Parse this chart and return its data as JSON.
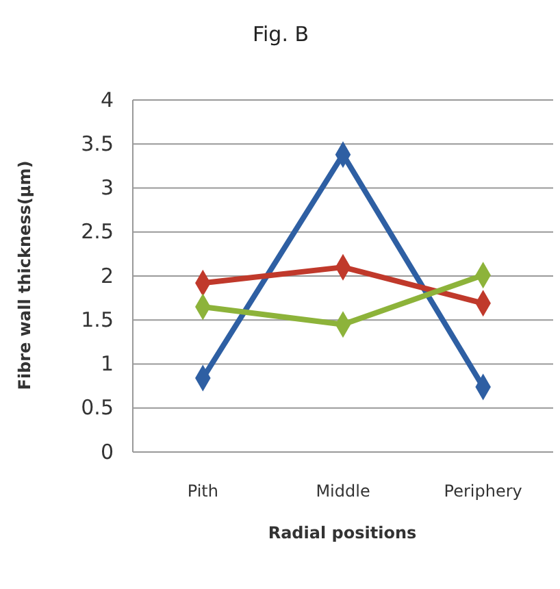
{
  "chart_data": {
    "type": "line",
    "title": "Fig. B",
    "xlabel": "Radial positions",
    "ylabel": "Fibre  wall thickness(µm)",
    "categories": [
      "Pith",
      "Middle",
      "Periphery"
    ],
    "series": [
      {
        "color": "#2e5fa3",
        "values": [
          0.84,
          3.38,
          0.74
        ]
      },
      {
        "color": "#c0392b",
        "values": [
          1.92,
          2.1,
          1.69
        ]
      },
      {
        "color": "#8db33a",
        "values": [
          1.65,
          1.45,
          2.01
        ]
      }
    ],
    "ylim": [
      0,
      4
    ],
    "yticks": [
      0,
      0.5,
      1,
      1.5,
      2,
      2.5,
      3,
      3.5,
      4
    ],
    "grid": "y",
    "marker": "diamond",
    "line_style": "solid"
  }
}
